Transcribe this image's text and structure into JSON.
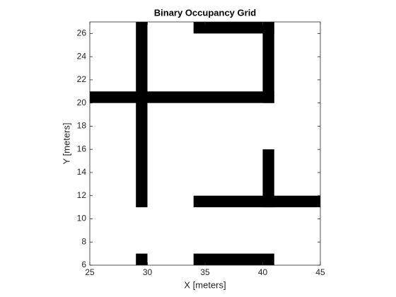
{
  "chart_data": {
    "type": "occupancy",
    "title": "Binary Occupancy Grid",
    "x_label": "X [meters]",
    "y_label": "Y [meters]",
    "xlim": [
      25,
      45
    ],
    "ylim": [
      6,
      27
    ],
    "xticks": [
      25,
      30,
      35,
      40,
      45
    ],
    "yticks": [
      6,
      8,
      10,
      12,
      14,
      16,
      18,
      20,
      22,
      24,
      26
    ],
    "color": "#000000",
    "obstacles": [
      {
        "x": [
          29,
          30
        ],
        "y": [
          11,
          27
        ]
      },
      {
        "x": [
          25,
          41
        ],
        "y": [
          20,
          21
        ]
      },
      {
        "x": [
          34,
          41
        ],
        "y": [
          26,
          27
        ]
      },
      {
        "x": [
          40,
          41
        ],
        "y": [
          20,
          27
        ]
      },
      {
        "x": [
          40,
          41
        ],
        "y": [
          11,
          16
        ]
      },
      {
        "x": [
          34,
          45
        ],
        "y": [
          11,
          12
        ]
      },
      {
        "x": [
          29,
          30
        ],
        "y": [
          6,
          7
        ]
      },
      {
        "x": [
          34,
          41
        ],
        "y": [
          6,
          7
        ]
      }
    ]
  }
}
